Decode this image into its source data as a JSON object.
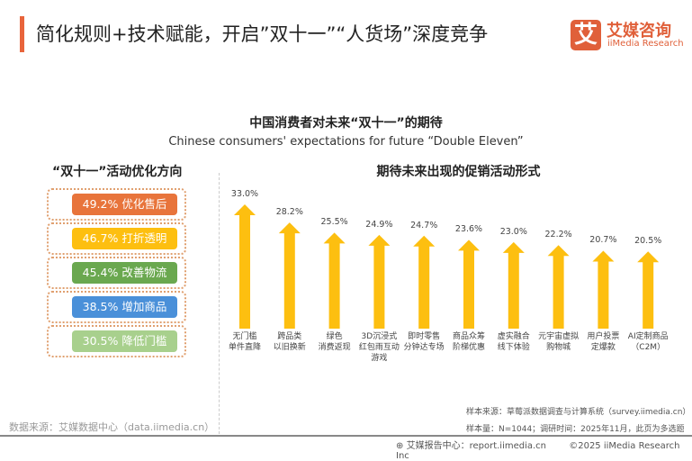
{
  "header": {
    "title": "简化规则+技术赋能，开启”双十一”“人货场”深度竞争",
    "logo_mark": "艾",
    "logo_cn": "艾媒咨询",
    "logo_en": "iiMedia Research",
    "accent": "#e8643b"
  },
  "chart_title": "中国消费者对未来“双十一”的期待",
  "chart_subtitle": "Chinese consumers' expectations for future “Double Eleven”",
  "left_panel": {
    "title": "“双十一”活动优化方向",
    "items": [
      {
        "label": "49.2%  优化售后",
        "value": 49.2,
        "color": "#e8743b"
      },
      {
        "label": "46.7%  打折透明",
        "value": 46.7,
        "color": "#fdbf10"
      },
      {
        "label": "45.4%  改善物流",
        "value": 45.4,
        "color": "#6aa84f"
      },
      {
        "label": "38.5%  增加商品",
        "value": 38.5,
        "color": "#4a90d9"
      },
      {
        "label": "30.5%  降低门槛",
        "value": 30.5,
        "color": "#a8d08d"
      }
    ]
  },
  "chart_data": {
    "type": "bar",
    "title": "期待未来出现的促销活动形式",
    "ylim": [
      0,
      35
    ],
    "color": "#fdbf10",
    "categories": [
      "无门槛\n单件直降",
      "跨品类\n以旧换新",
      "绿色\n消费返现",
      "3D沉浸式\n红包雨互动\n游戏",
      "即时零售\n分钟达专场",
      "商品众筹\n阶梯优惠",
      "虚实融合\n线下体验",
      "元宇宙虚拟\n购物城",
      "用户投票\n定爆款",
      "AI定制商品\n（C2M）"
    ],
    "values": [
      33.0,
      28.2,
      25.5,
      24.9,
      24.7,
      23.6,
      23.0,
      22.2,
      20.7,
      20.5
    ],
    "labels": [
      "33.0%",
      "28.2%",
      "25.5%",
      "24.9%",
      "24.7%",
      "23.6%",
      "23.0%",
      "22.2%",
      "20.7%",
      "20.5%"
    ]
  },
  "footer": {
    "source_left": "数据来源：艾媒数据中心（data.iimedia.cn）",
    "sample_source": "样本来源：草莓派数据调查与计算系统（survey.iimedia.cn）",
    "sample_info": "样本量：N=1044；调研时间：2025年11月，此页为多选题",
    "report": "艾媒报告中心：report.iimedia.cn",
    "copyright": "©2025  iiMedia Research  Inc"
  }
}
